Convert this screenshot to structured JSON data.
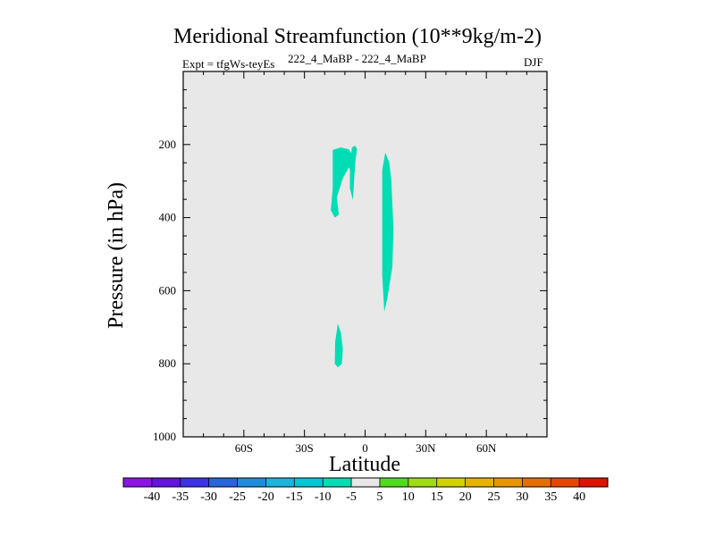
{
  "header": {
    "title": "Meridional Streamfunction (10**9kg/m-2)",
    "experiment": "Expt = tfgWs-teyEs",
    "comparison": "222_4_MaBP - 222_4_MaBP",
    "season": "DJF"
  },
  "chart_data": {
    "type": "contour",
    "title": "Meridional Streamfunction (10**9kg/m-2)",
    "xlabel": "Latitude",
    "ylabel": "Pressure (in hPa)",
    "xlim": [
      -90,
      90
    ],
    "ylim": [
      0,
      1000
    ],
    "y_inverted": true,
    "x_ticks": [
      {
        "value": -60,
        "label": "60S"
      },
      {
        "value": -30,
        "label": "30S"
      },
      {
        "value": 0,
        "label": "0"
      },
      {
        "value": 30,
        "label": "30N"
      },
      {
        "value": 60,
        "label": "60N"
      }
    ],
    "y_ticks": [
      {
        "value": 200,
        "label": "200"
      },
      {
        "value": 400,
        "label": "400"
      },
      {
        "value": 600,
        "label": "600"
      },
      {
        "value": 800,
        "label": "800"
      },
      {
        "value": 1000,
        "label": "1000"
      }
    ],
    "background_color": "#e8e8e8",
    "regions": [
      {
        "name": "region-upper-left-a",
        "level": -7.5,
        "color": "#00dcb4",
        "points": [
          [
            -16,
            215
          ],
          [
            -12,
            208
          ],
          [
            -8,
            213
          ],
          [
            -6,
            232
          ],
          [
            -5,
            272
          ],
          [
            -6,
            288
          ],
          [
            -8,
            262
          ],
          [
            -11,
            292
          ],
          [
            -14,
            345
          ],
          [
            -13,
            392
          ],
          [
            -15,
            400
          ],
          [
            -17,
            380
          ],
          [
            -16,
            320
          ],
          [
            -16,
            260
          ]
        ]
      },
      {
        "name": "region-upper-left-b",
        "level": -7.5,
        "color": "#00dcb4",
        "points": [
          [
            -6.5,
            208
          ],
          [
            -5,
            203
          ],
          [
            -4,
            212
          ],
          [
            -5,
            255
          ],
          [
            -6,
            352
          ],
          [
            -7.5,
            320
          ],
          [
            -7.5,
            250
          ]
        ]
      },
      {
        "name": "region-middle",
        "level": -7.5,
        "color": "#00dcb4",
        "points": [
          [
            8.5,
            270
          ],
          [
            10,
            222
          ],
          [
            12,
            250
          ],
          [
            13,
            300
          ],
          [
            14,
            430
          ],
          [
            13.5,
            535
          ],
          [
            11,
            620
          ],
          [
            9.5,
            658
          ],
          [
            8.5,
            560
          ],
          [
            8.5,
            420
          ]
        ]
      },
      {
        "name": "region-lower",
        "level": -7.5,
        "color": "#00dcb4",
        "points": [
          [
            -13.5,
            690
          ],
          [
            -12,
            715
          ],
          [
            -11,
            760
          ],
          [
            -11.5,
            800
          ],
          [
            -13.5,
            810
          ],
          [
            -15,
            800
          ],
          [
            -14.8,
            740
          ]
        ]
      }
    ],
    "colorbar": {
      "labels": [
        "-40",
        "-35",
        "-30",
        "-25",
        "-20",
        "-15",
        "-10",
        "-5",
        "5",
        "10",
        "15",
        "20",
        "25",
        "30",
        "35",
        "40"
      ],
      "colors": [
        "#8c14e6",
        "#6414dc",
        "#3c32e6",
        "#2864dc",
        "#1e8cdc",
        "#1eb4dc",
        "#00c8d2",
        "#00dcb4",
        "#e8e8e8",
        "#50dc1e",
        "#a0dc14",
        "#d2d200",
        "#e6b400",
        "#e69600",
        "#e66e00",
        "#e64600",
        "#dc1400"
      ]
    }
  }
}
